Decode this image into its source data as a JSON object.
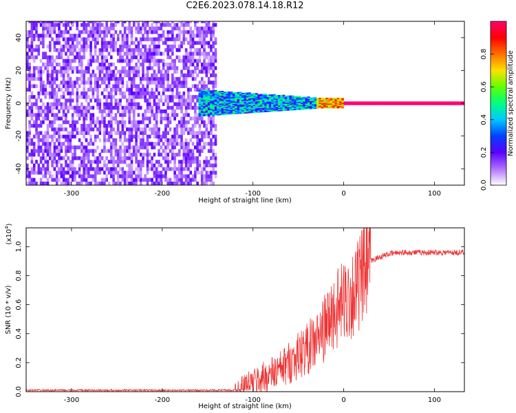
{
  "title": "C2E6.2023.078.14.18.R12",
  "chart_data": [
    {
      "type": "heatmap",
      "xlabel": "Height of straight line (km)",
      "ylabel": "Frequency (Hz)",
      "xlim": [
        -350,
        133
      ],
      "ylim": [
        -50,
        50
      ],
      "xticks": [
        -300,
        -200,
        -100,
        0,
        100
      ],
      "xtick_labels": [
        "-300",
        "-200",
        "-100",
        "0",
        "100"
      ],
      "yticks": [
        -40,
        -20,
        0,
        20,
        40
      ],
      "ytick_labels": [
        "-40",
        "-20",
        "0",
        "20",
        "40"
      ],
      "description_regions": [
        {
          "x_range": [
            -350,
            -140
          ],
          "y_range": [
            -50,
            50
          ],
          "amplitude": [
            0.05,
            0.2
          ],
          "character": "broadband noise"
        },
        {
          "x_range": [
            -160,
            -30
          ],
          "y_range": [
            -8,
            8
          ],
          "amplitude": [
            0.2,
            0.55
          ],
          "character": "narrowing signal band"
        },
        {
          "x_range": [
            -30,
            0
          ],
          "y_range": [
            -3,
            3
          ],
          "amplitude": [
            0.6,
            0.9
          ],
          "character": "strong carrier"
        },
        {
          "x_range": [
            0,
            133
          ],
          "y_range": [
            -1,
            1
          ],
          "amplitude": [
            1.0,
            1.0
          ],
          "character": "clean carrier at 0 Hz"
        }
      ],
      "colorbar": {
        "label": "Normalized spectral amplitude",
        "range": [
          0,
          1
        ],
        "ticks": [
          0.0,
          0.2,
          0.4,
          0.6,
          0.8
        ],
        "tick_labels": [
          "0.0",
          "0.2",
          "0.4",
          "0.6",
          "0.8"
        ],
        "colors": [
          "#ffffff",
          "#b070ff",
          "#5a00ff",
          "#0040ff",
          "#00c8ff",
          "#00ff80",
          "#60ff00",
          "#ffe000",
          "#ff7000",
          "#ff0000",
          "#ff0070"
        ]
      }
    },
    {
      "type": "line",
      "xlabel": "Height of straight line (km)",
      "ylabel": "SNR (10 * v/v)",
      "y_multiplier": "(x10",
      "y_multiplier_exp": "4",
      "y_multiplier_close": ")",
      "xlim": [
        -350,
        133
      ],
      "ylim": [
        0,
        1.13
      ],
      "xticks": [
        -300,
        -200,
        -100,
        0,
        100
      ],
      "xtick_labels": [
        "-300",
        "-200",
        "-100",
        "0",
        "100"
      ],
      "yticks": [
        0.0,
        0.2,
        0.4,
        0.6,
        0.8,
        1.0
      ],
      "ytick_labels": [
        "0.0",
        "0.2",
        "0.4",
        "0.6",
        "0.8",
        "1.0"
      ],
      "series": [
        {
          "color": "#ee3333",
          "x": [
            -350,
            -300,
            -250,
            -200,
            -150,
            -120,
            -110,
            -100,
            -90,
            -80,
            -70,
            -60,
            -50,
            -40,
            -30,
            -25,
            -20,
            -15,
            -10,
            -5,
            0,
            5,
            10,
            15,
            20,
            25,
            30,
            40,
            50,
            60,
            80,
            100,
            120,
            133
          ],
          "y": [
            0.01,
            0.01,
            0.01,
            0.01,
            0.01,
            0.01,
            0.03,
            0.06,
            0.09,
            0.12,
            0.15,
            0.2,
            0.25,
            0.3,
            0.35,
            0.4,
            0.45,
            0.5,
            0.55,
            0.58,
            0.62,
            0.65,
            0.68,
            0.72,
            0.78,
            0.85,
            0.9,
            0.93,
            0.95,
            0.96,
            0.96,
            0.96,
            0.96,
            0.96
          ]
        }
      ]
    }
  ]
}
